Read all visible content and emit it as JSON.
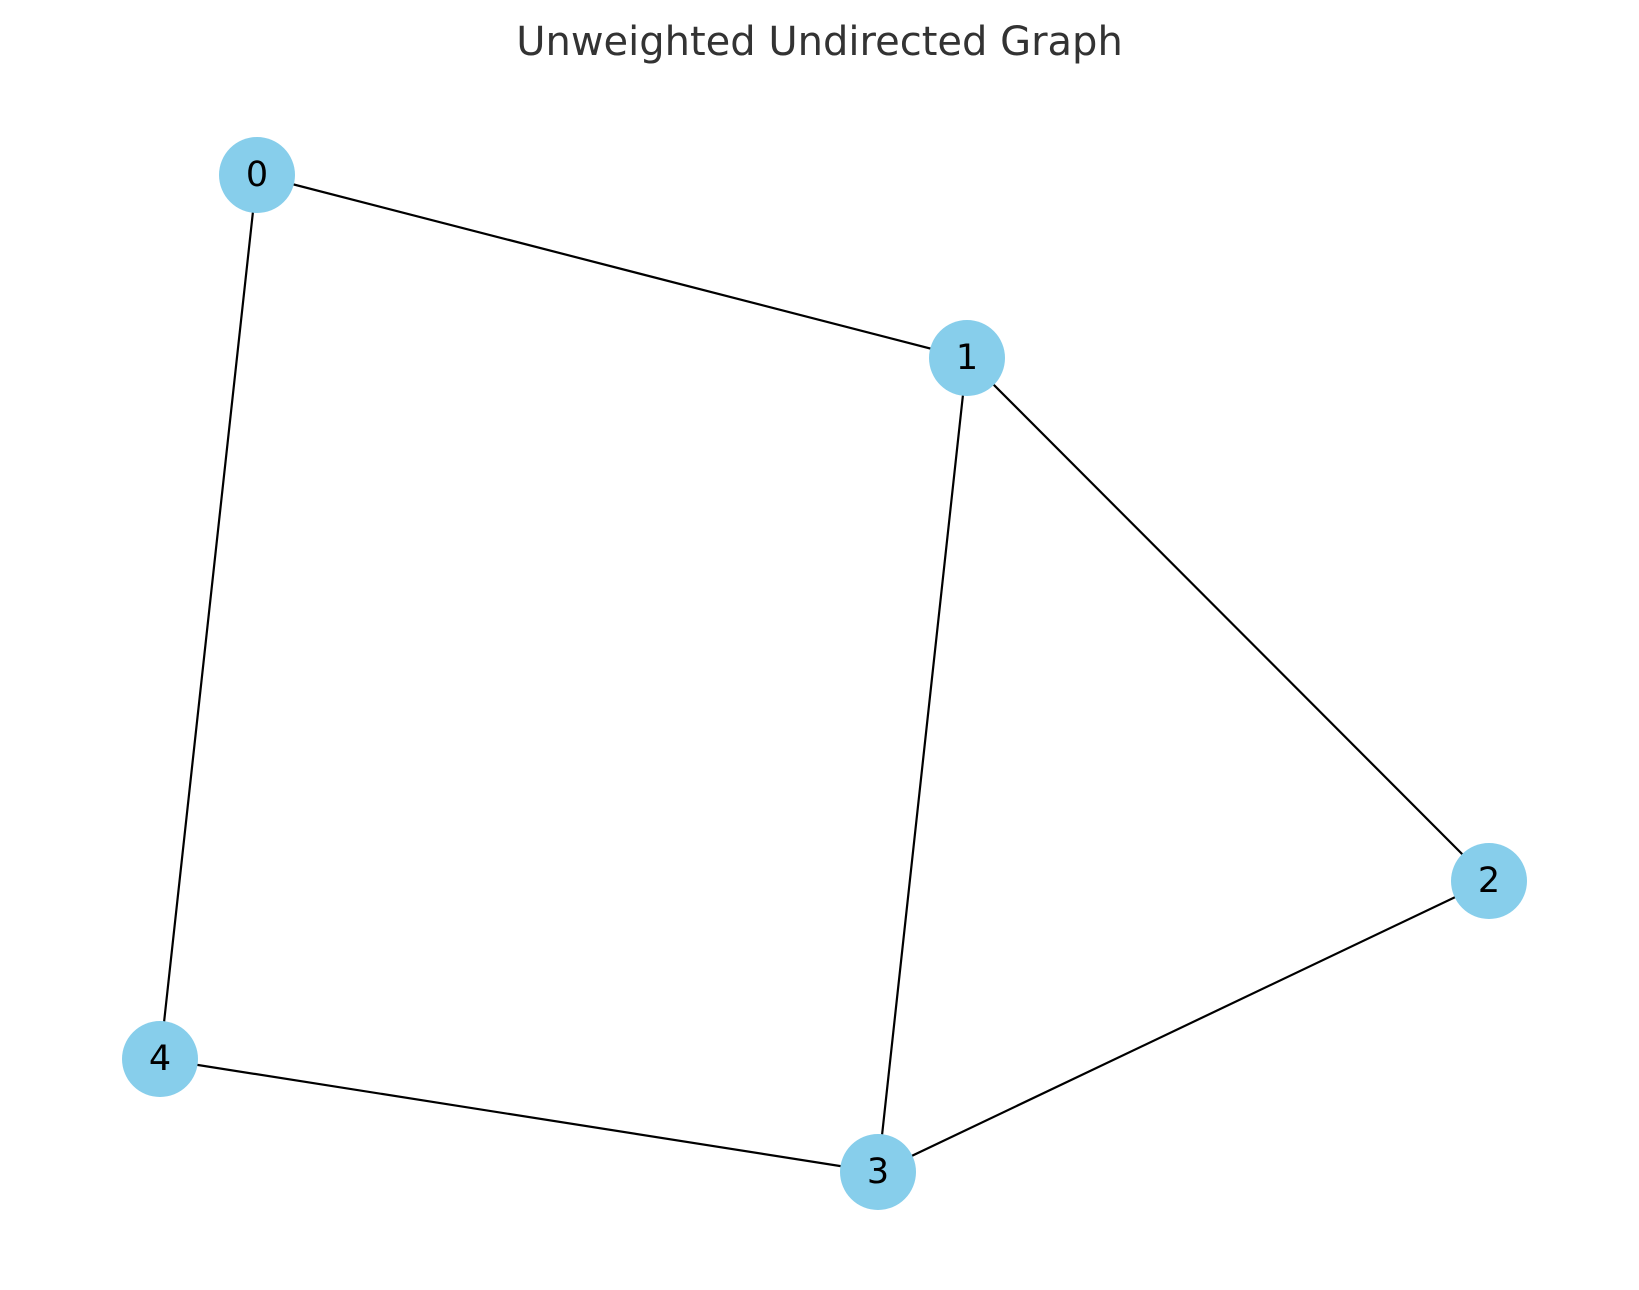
{
  "title": "Unweighted Undirected Graph",
  "colors": {
    "node_fill": "#87CEEB",
    "edge": "#000000",
    "title": "#333333"
  },
  "graph": {
    "directed": false,
    "weighted": false,
    "nodes": [
      {
        "id": "0",
        "label": "0"
      },
      {
        "id": "1",
        "label": "1"
      },
      {
        "id": "2",
        "label": "2"
      },
      {
        "id": "3",
        "label": "3"
      },
      {
        "id": "4",
        "label": "4"
      }
    ],
    "edges": [
      {
        "source": "0",
        "target": "1"
      },
      {
        "source": "0",
        "target": "4"
      },
      {
        "source": "1",
        "target": "2"
      },
      {
        "source": "1",
        "target": "3"
      },
      {
        "source": "2",
        "target": "3"
      },
      {
        "source": "3",
        "target": "4"
      }
    ]
  }
}
